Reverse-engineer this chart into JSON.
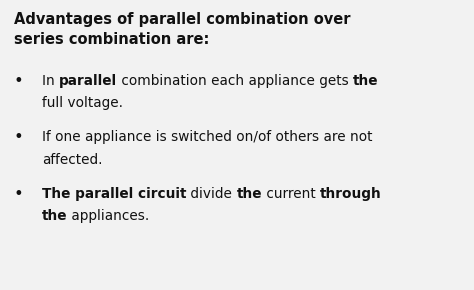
{
  "background_color": "#f2f2f2",
  "text_color": "#111111",
  "title": "Advantages of parallel combination over\nseries combination are:",
  "font_size_title": 10.5,
  "font_size_body": 9.8,
  "bullet_char": "•",
  "bullet1_line1": [
    [
      "In ",
      false
    ],
    [
      "parallel",
      true
    ],
    [
      " combination each appliance gets ",
      false
    ],
    [
      "the",
      true
    ]
  ],
  "bullet1_line2": [
    [
      "full voltage.",
      false
    ]
  ],
  "bullet2_line1": [
    [
      "If one appliance is switched on/of others are not",
      false
    ]
  ],
  "bullet2_line2": [
    [
      "affected.",
      false
    ]
  ],
  "bullet3_line1": [
    [
      "The parallel circuit",
      true
    ],
    [
      " divide ",
      false
    ],
    [
      "the",
      true
    ],
    [
      " current ",
      false
    ],
    [
      "through",
      true
    ]
  ],
  "bullet3_line2": [
    [
      "the",
      true
    ],
    [
      " appliances.",
      false
    ]
  ]
}
